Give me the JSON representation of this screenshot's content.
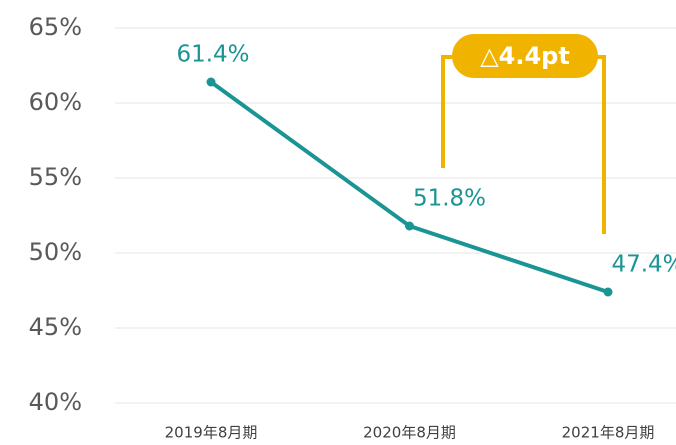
{
  "chart_data": {
    "type": "line",
    "categories": [
      "2019年8月期",
      "2020年8月期",
      "2021年8月期"
    ],
    "series": [
      {
        "name": null,
        "color": "#1a9494",
        "values": [
          61.4,
          51.8,
          47.4
        ],
        "value_labels": [
          "61.4%",
          "51.8%",
          "47.4%"
        ]
      }
    ],
    "ylim": [
      40,
      65
    ],
    "yticks": [
      {
        "value": 40,
        "label": "40%"
      },
      {
        "value": 45,
        "label": "45%"
      },
      {
        "value": 50,
        "label": "50%"
      },
      {
        "value": 55,
        "label": "55%"
      },
      {
        "value": 60,
        "label": "60%"
      },
      {
        "value": 65,
        "label": "65%"
      }
    ],
    "grid": true,
    "annotation": "△4.4pt",
    "annotation_color": "#f0b400"
  }
}
